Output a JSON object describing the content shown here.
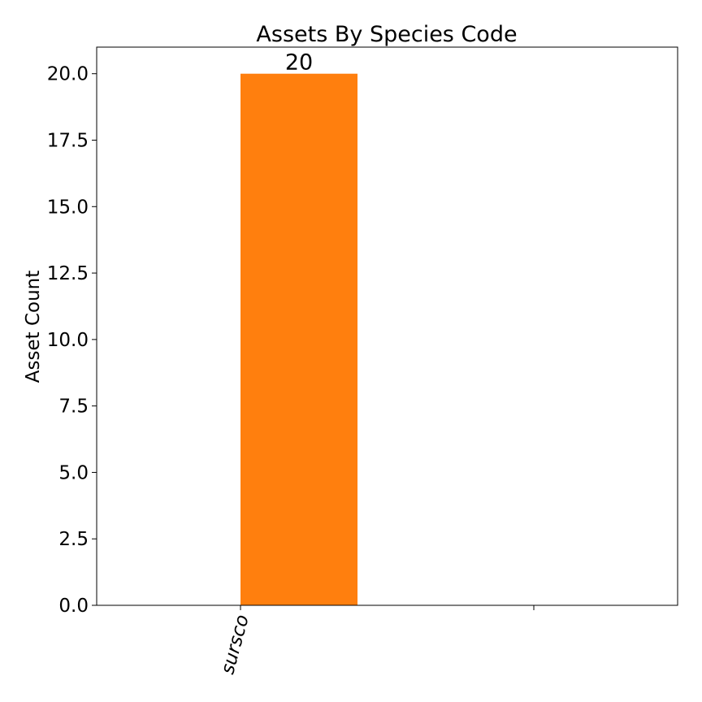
{
  "chart_data": {
    "type": "bar",
    "title": "Assets By Species Code",
    "xlabel": "",
    "ylabel": "Asset Count",
    "categories": [
      "sursco",
      ""
    ],
    "values": [
      20,
      0
    ],
    "ylim": [
      0,
      21
    ],
    "yticks": [
      0.0,
      2.5,
      5.0,
      7.5,
      10.0,
      12.5,
      15.0,
      17.5,
      20.0
    ],
    "ytick_labels": [
      "0.0",
      "2.5",
      "5.0",
      "7.5",
      "10.0",
      "12.5",
      "15.0",
      "17.5",
      "20.0"
    ],
    "data_labels": [
      "20"
    ],
    "bar_color": "#ff7f0e",
    "grid": false,
    "legend": "none"
  }
}
